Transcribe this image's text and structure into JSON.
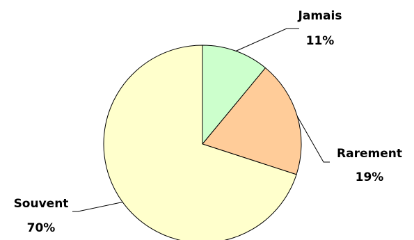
{
  "chart_data": {
    "type": "pie",
    "title": "",
    "categories": [
      "Jamais",
      "Rarement",
      "Souvent"
    ],
    "values": [
      11,
      19,
      70
    ],
    "value_labels": [
      "11%",
      "19%",
      "70%"
    ],
    "start_angle_deg": 0,
    "direction": "clockwise",
    "legend": "none",
    "slices": [
      {
        "label": "Jamais",
        "value": 11,
        "value_label": "11%",
        "color": "#ccffcc"
      },
      {
        "label": "Rarement",
        "value": 19,
        "value_label": "19%",
        "color": "#ffcc99"
      },
      {
        "label": "Souvent",
        "value": 70,
        "value_label": "70%",
        "color": "#ffffcc"
      }
    ],
    "colors": {
      "stroke": "#000000",
      "text": "#000000",
      "background": "#ffffff"
    }
  }
}
